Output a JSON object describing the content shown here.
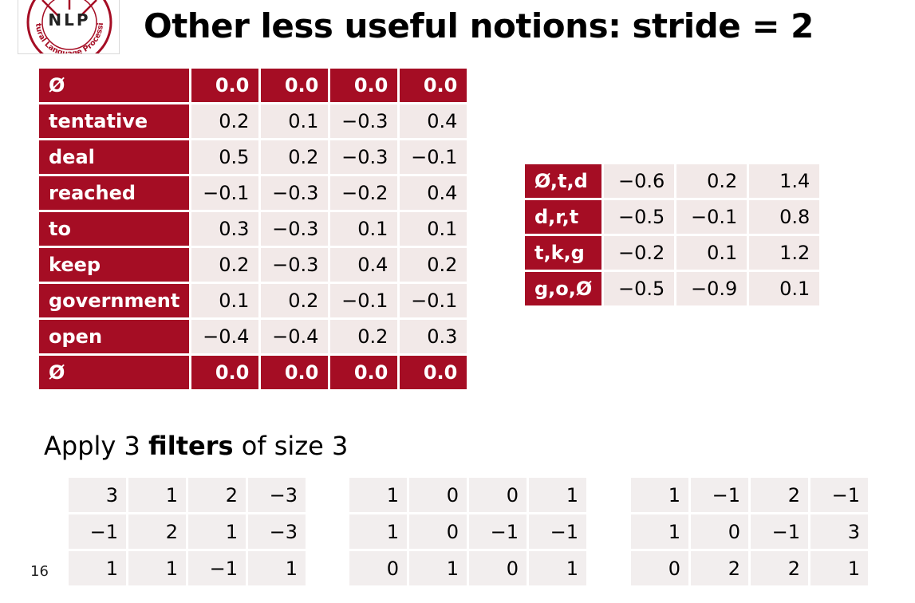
{
  "logo": {
    "text": "NLP",
    "ring_text": "Natural Language Processing"
  },
  "title": "Other less useful notions: stride = 2",
  "input_table": {
    "rows": [
      {
        "label": "Ø",
        "values": [
          "0.0",
          "0.0",
          "0.0",
          "0.0"
        ],
        "padding": true
      },
      {
        "label": "tentative",
        "values": [
          "0.2",
          "0.1",
          "−0.3",
          "0.4"
        ],
        "padding": false
      },
      {
        "label": "deal",
        "values": [
          "0.5",
          "0.2",
          "−0.3",
          "−0.1"
        ],
        "padding": false
      },
      {
        "label": "reached",
        "values": [
          "−0.1",
          "−0.3",
          "−0.2",
          "0.4"
        ],
        "padding": false
      },
      {
        "label": "to",
        "values": [
          "0.3",
          "−0.3",
          "0.1",
          "0.1"
        ],
        "padding": false
      },
      {
        "label": "keep",
        "values": [
          "0.2",
          "−0.3",
          "0.4",
          "0.2"
        ],
        "padding": false
      },
      {
        "label": "government",
        "values": [
          "0.1",
          "0.2",
          "−0.1",
          "−0.1"
        ],
        "padding": false
      },
      {
        "label": "open",
        "values": [
          "−0.4",
          "−0.4",
          "0.2",
          "0.3"
        ],
        "padding": false
      },
      {
        "label": "Ø",
        "values": [
          "0.0",
          "0.0",
          "0.0",
          "0.0"
        ],
        "padding": true
      }
    ]
  },
  "result_table": {
    "rows": [
      {
        "label": "Ø,t,d",
        "values": [
          "−0.6",
          "0.2",
          "1.4"
        ]
      },
      {
        "label": "d,r,t",
        "values": [
          "−0.5",
          "−0.1",
          "0.8"
        ]
      },
      {
        "label": "t,k,g",
        "values": [
          "−0.2",
          "0.1",
          "1.2"
        ]
      },
      {
        "label": "g,o,Ø",
        "values": [
          "−0.5",
          "−0.9",
          "0.1"
        ]
      }
    ]
  },
  "caption": {
    "pre": "Apply 3 ",
    "bold": "filters",
    "post": " of size 3"
  },
  "filters": [
    [
      [
        "3",
        "1",
        "2",
        "−3"
      ],
      [
        "−1",
        "2",
        "1",
        "−3"
      ],
      [
        "1",
        "1",
        "−1",
        "1"
      ]
    ],
    [
      [
        "1",
        "0",
        "0",
        "1"
      ],
      [
        "1",
        "0",
        "−1",
        "−1"
      ],
      [
        "0",
        "1",
        "0",
        "1"
      ]
    ],
    [
      [
        "1",
        "−1",
        "2",
        "−1"
      ],
      [
        "1",
        "0",
        "−1",
        "3"
      ],
      [
        "0",
        "2",
        "2",
        "1"
      ]
    ]
  ],
  "page_number": "16",
  "colors": {
    "accent": "#a50d24",
    "cell_bg": "#f2e9e8",
    "filter_bg": "#f2eeee"
  }
}
